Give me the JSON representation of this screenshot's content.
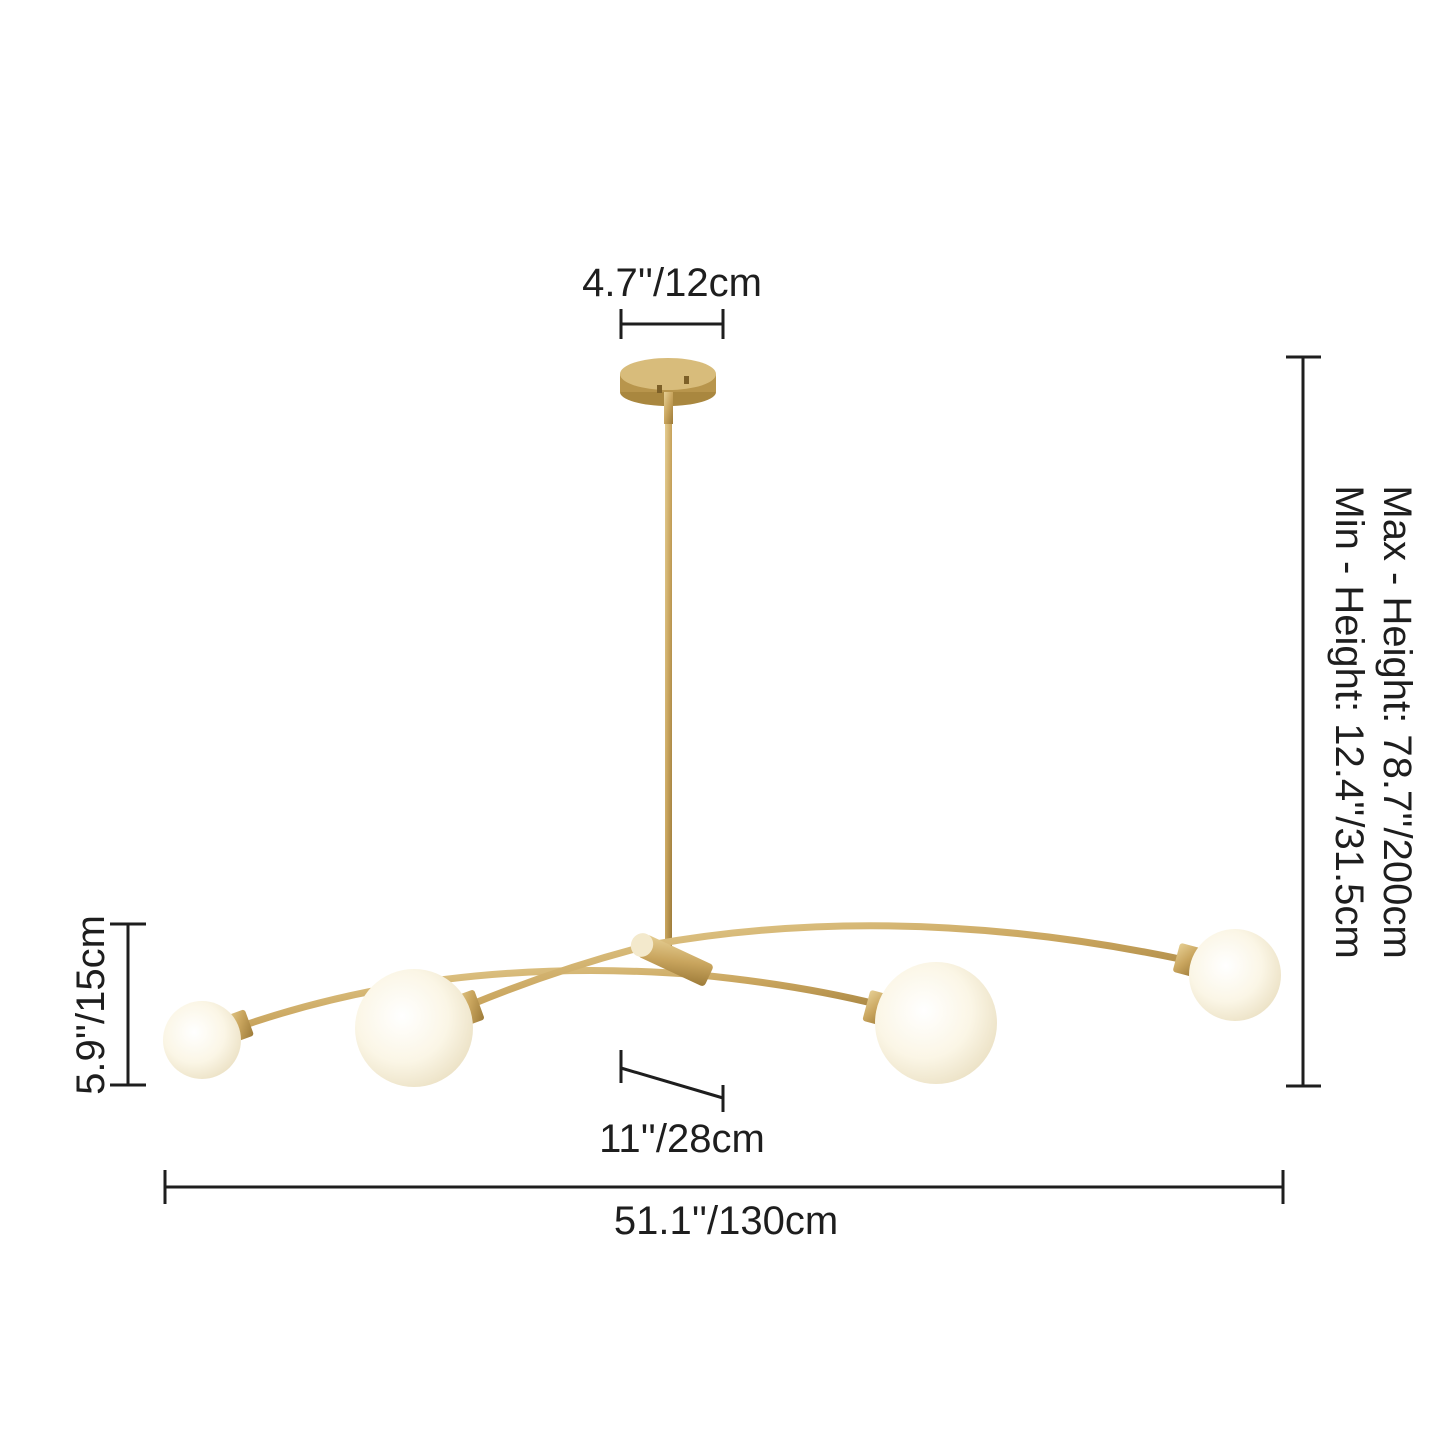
{
  "dimensions": {
    "canopy_width": "4.7''/12cm",
    "max_height": "Max - Height: 78.7''/200cm",
    "min_height": "Min - Height: 12.4''/31.5cm",
    "globe_height": "5.9''/15cm",
    "center_length": "11''/28cm",
    "total_width": "51.1''/130cm"
  },
  "colors": {
    "brass": "#c9a55e",
    "brass_dark": "#9c7a38",
    "glass": "#fbf7ea",
    "line": "#1e1e1e"
  }
}
